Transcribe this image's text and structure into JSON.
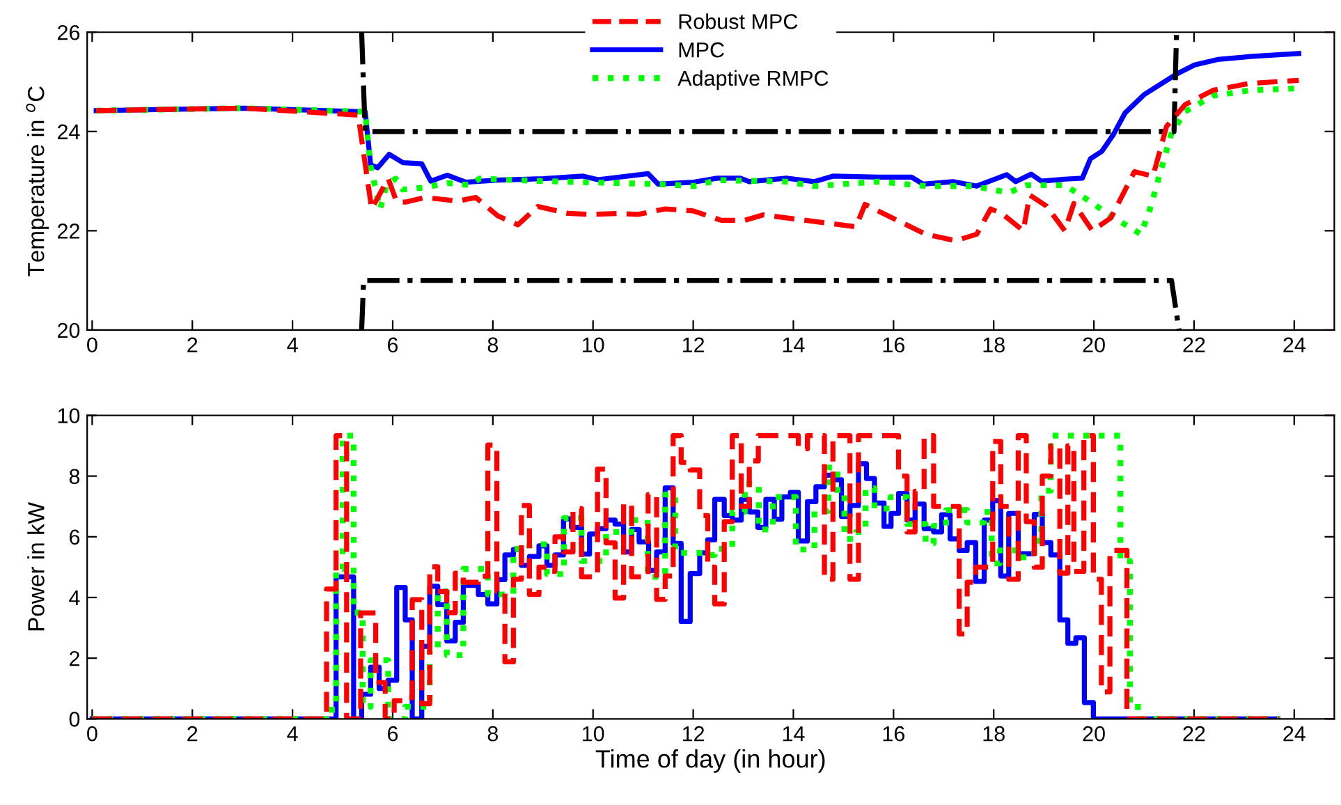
{
  "chart_data": [
    {
      "type": "line",
      "ylabel": "Temperature in $^{o}$C",
      "xlim": [
        -0.1,
        24.8
      ],
      "xticks": [
        0,
        2,
        4,
        6,
        8,
        10,
        12,
        14,
        16,
        18,
        20,
        22,
        24
      ],
      "ylim": [
        20,
        26
      ],
      "yticks": [
        20,
        22,
        24,
        26
      ],
      "legend": "top",
      "grid": false,
      "series": [
        {
          "name": "Robust MPC",
          "color": "#ff0000",
          "line_style": "dashed",
          "x": [
            0.08,
            3.04,
            5.31,
            5.58,
            5.91,
            6.08,
            6.27,
            6.64,
            7.3,
            7.66,
            8.1,
            8.5,
            8.9,
            9.5,
            9.97,
            10.5,
            10.9,
            11.44,
            12.0,
            12.56,
            13.03,
            13.4,
            15.25,
            15.43,
            16.64,
            17.24,
            17.66,
            17.94,
            18.16,
            18.59,
            18.72,
            19.05,
            19.42,
            19.6,
            19.97,
            20.34,
            20.81,
            21.18,
            21.45,
            21.82,
            22.38,
            23.12,
            24.09
          ],
          "values": [
            24.42,
            24.47,
            24.33,
            22.44,
            23.05,
            22.58,
            22.58,
            22.67,
            22.6,
            22.67,
            22.3,
            22.12,
            22.49,
            22.35,
            22.33,
            22.35,
            22.33,
            22.44,
            22.4,
            22.21,
            22.21,
            22.32,
            22.08,
            22.53,
            21.93,
            21.8,
            21.93,
            22.44,
            22.35,
            22.0,
            22.72,
            22.5,
            22.0,
            22.55,
            22.0,
            22.26,
            23.19,
            23.1,
            24.1,
            24.54,
            24.83,
            24.97,
            25.03
          ]
        },
        {
          "name": "MPC",
          "color": "#0000ff",
          "line_style": "solid",
          "x": [
            0.08,
            3.04,
            5.36,
            5.45,
            5.56,
            5.7,
            5.93,
            6.21,
            6.58,
            6.76,
            7.09,
            7.46,
            8.1,
            9.0,
            9.8,
            10.1,
            11.1,
            11.3,
            12.01,
            12.48,
            12.94,
            13.12,
            13.86,
            14.42,
            14.79,
            15.71,
            16.36,
            16.59,
            17.19,
            17.66,
            18.26,
            18.44,
            18.75,
            18.95,
            19.42,
            19.77,
            19.93,
            20.16,
            20.39,
            20.62,
            21.0,
            21.64,
            22.01,
            22.47,
            23.12,
            24.09
          ],
          "values": [
            24.42,
            24.47,
            24.4,
            24.4,
            23.33,
            23.27,
            23.54,
            23.37,
            23.35,
            23.0,
            23.12,
            22.98,
            23.02,
            23.05,
            23.1,
            23.03,
            23.15,
            22.94,
            22.98,
            23.06,
            23.06,
            22.99,
            23.06,
            22.99,
            23.1,
            23.08,
            23.08,
            22.94,
            22.99,
            22.9,
            23.13,
            22.99,
            23.14,
            23.0,
            23.04,
            23.06,
            23.45,
            23.6,
            23.94,
            24.37,
            24.74,
            25.15,
            25.34,
            25.45,
            25.51,
            25.57
          ]
        },
        {
          "name": "Adaptive RMPC",
          "color": "#00ff00",
          "line_style": "dotted",
          "x": [
            0.08,
            3.04,
            5.36,
            5.45,
            5.56,
            5.75,
            5.88,
            6.06,
            6.2,
            6.62,
            7.09,
            7.55,
            7.73,
            9.0,
            11.3,
            12.01,
            12.48,
            13.86,
            14.42,
            15.71,
            16.64,
            17.57,
            18.3,
            18.66,
            19.42,
            19.79,
            20.34,
            20.94,
            21.12,
            21.54,
            21.82,
            22.38,
            23.12,
            24.09
          ],
          "values": [
            24.42,
            24.47,
            24.4,
            24.4,
            23.29,
            22.44,
            22.93,
            23.05,
            22.83,
            22.87,
            22.96,
            22.92,
            23.05,
            23.0,
            22.94,
            22.9,
            23.02,
            22.99,
            22.9,
            22.99,
            22.9,
            22.9,
            22.77,
            22.92,
            22.92,
            22.68,
            22.3,
            21.93,
            22.44,
            23.94,
            24.4,
            24.72,
            24.83,
            24.87
          ]
        },
        {
          "color": "#000000",
          "line_style": "dashdot",
          "x": [
            5.38,
            5.45,
            21.6,
            21.65
          ],
          "values": [
            26,
            24,
            24,
            26
          ]
        },
        {
          "color": "#000000",
          "line_style": "dashdot",
          "x": [
            5.38,
            5.42,
            21.55,
            21.7
          ],
          "values": [
            20,
            21,
            21,
            20
          ]
        }
      ]
    },
    {
      "type": "step",
      "xlabel": "Time of day (in hour)",
      "ylabel": "Power in kW",
      "xlim": [
        -0.1,
        24.8
      ],
      "xticks": [
        0,
        2,
        4,
        6,
        8,
        10,
        12,
        14,
        16,
        18,
        20,
        22,
        24
      ],
      "ylim": [
        0,
        10
      ],
      "yticks": [
        0,
        2,
        4,
        6,
        8,
        10
      ],
      "grid": false,
      "series": [
        {
          "color": "#ff0000",
          "line_style": "dashed",
          "x": [
            0,
            4.68,
            4.87,
            5.08,
            5.36,
            5.66,
            5.85,
            6.03,
            6.2,
            6.39,
            6.58,
            6.74,
            6.9,
            7.08,
            7.25,
            7.41,
            7.71,
            7.9,
            8.08,
            8.24,
            8.41,
            8.57,
            8.73,
            8.92,
            9.08,
            9.24,
            9.41,
            9.6,
            9.77,
            10.09,
            10.26,
            10.44,
            10.61,
            10.77,
            11.1,
            11.27,
            11.44,
            11.6,
            11.76,
            11.94,
            12.13,
            12.29,
            12.43,
            12.62,
            12.78,
            12.96,
            13.12,
            13.3,
            14.1,
            14.28,
            14.62,
            14.79,
            15.13,
            15.3,
            16.1,
            16.27,
            16.43,
            16.61,
            16.8,
            17.31,
            17.47,
            17.64,
            17.98,
            18.14,
            18.3,
            18.49,
            18.65,
            18.81,
            18.97,
            19.14,
            19.32,
            19.48,
            19.6,
            19.8,
            19.99,
            20.15,
            20.32,
            20.66,
            23.7
          ],
          "values": [
            0,
            4.28,
            9.33,
            0,
            3.49,
            1.2,
            0,
            0.6,
            0.7,
            3.93,
            0.5,
            5.01,
            4.2,
            3.5,
            4.8,
            4.5,
            4.7,
            9.02,
            4.2,
            1.88,
            4.6,
            7.03,
            4.1,
            5.0,
            4.86,
            6.0,
            5.5,
            6.93,
            4.68,
            8.23,
            5.8,
            3.98,
            7.08,
            4.68,
            7.39,
            3.94,
            4.71,
            9.33,
            8.45,
            8.2,
            6.7,
            5.0,
            3.79,
            6.5,
            9.33,
            7.0,
            8.5,
            9.33,
            8.9,
            9.33,
            4.6,
            9.33,
            4.6,
            9.33,
            8.0,
            6.16,
            7.5,
            9.33,
            7.0,
            2.8,
            4.5,
            5.0,
            9.14,
            7.0,
            4.6,
            9.33,
            6.5,
            5.0,
            8.0,
            9.0,
            4.8,
            9.0,
            4.86,
            9.33,
            4.6,
            0.89,
            5.55,
            0,
            0
          ]
        },
        {
          "color": "#0000ff",
          "line_style": "solid",
          "x": [
            0,
            4.87,
            5.22,
            5.38,
            5.56,
            5.73,
            5.91,
            6.08,
            6.25,
            6.39,
            6.58,
            6.74,
            6.9,
            7.08,
            7.25,
            7.41,
            7.71,
            7.9,
            8.08,
            8.24,
            8.41,
            8.57,
            8.73,
            8.92,
            9.08,
            9.24,
            9.41,
            9.57,
            9.77,
            9.93,
            10.09,
            10.26,
            10.44,
            10.61,
            10.77,
            10.92,
            11.11,
            11.27,
            11.44,
            11.6,
            11.76,
            11.94,
            12.13,
            12.29,
            12.43,
            12.62,
            12.78,
            12.96,
            13.12,
            13.29,
            13.45,
            13.62,
            13.77,
            13.94,
            14.1,
            14.28,
            14.45,
            14.62,
            14.79,
            14.96,
            15.13,
            15.3,
            15.46,
            15.62,
            15.81,
            15.95,
            16.1,
            16.27,
            16.43,
            16.61,
            16.8,
            16.96,
            17.13,
            17.31,
            17.47,
            17.64,
            17.81,
            17.98,
            18.14,
            18.3,
            18.49,
            18.81,
            18.97,
            19.14,
            19.32,
            19.48,
            19.64,
            19.81,
            19.99,
            23.67
          ],
          "values": [
            0,
            4.68,
            0,
            0.81,
            1.7,
            1.0,
            1.27,
            4.33,
            3.26,
            0,
            2.39,
            4.37,
            3.76,
            2.57,
            3.18,
            4.4,
            4.1,
            3.79,
            4.59,
            5.4,
            5.58,
            5.06,
            5.35,
            5.7,
            5.06,
            5.4,
            6.59,
            6.31,
            5.43,
            6.09,
            6.27,
            6.55,
            6.42,
            5.5,
            6.24,
            5.83,
            4.89,
            5.5,
            7.61,
            5.78,
            3.21,
            4.79,
            5.47,
            5.9,
            7.23,
            6.7,
            6.55,
            7.23,
            6.82,
            6.31,
            7.23,
            6.58,
            7.31,
            7.46,
            5.86,
            7.16,
            7.65,
            8.03,
            7.88,
            6.67,
            7.03,
            8.41,
            7.92,
            7.11,
            6.34,
            6.77,
            7.43,
            6.55,
            7.08,
            6.27,
            6.16,
            6.73,
            5.93,
            5.55,
            5.81,
            4.53,
            6.55,
            7.19,
            4.71,
            6.77,
            5.44,
            6.74,
            5.81,
            5.4,
            3.26,
            2.49,
            2.67,
            0.54,
            0,
            0
          ]
        },
        {
          "color": "#00ff00",
          "line_style": "dotted",
          "x": [
            0,
            4.68,
            4.87,
            5.0,
            5.22,
            5.4,
            5.56,
            5.91,
            6.25,
            6.74,
            6.9,
            7.08,
            7.41,
            7.9,
            8.41,
            8.73,
            9.08,
            9.42,
            9.77,
            10.26,
            10.77,
            11.09,
            11.44,
            11.64,
            12.25,
            12.43,
            12.78,
            13.03,
            13.31,
            13.59,
            14.05,
            14.42,
            14.7,
            14.88,
            15.02,
            15.25,
            15.44,
            15.62,
            15.94,
            16.27,
            16.64,
            16.8,
            17.05,
            17.47,
            17.8,
            17.96,
            18.12,
            18.49,
            18.81,
            18.95,
            19.14,
            20.53,
            20.72,
            20.88,
            23.71
          ],
          "values": [
            0,
            0.3,
            4.94,
            9.33,
            3.5,
            0.4,
            1.93,
            0,
            0.4,
            2.26,
            4.2,
            2.1,
            4.94,
            4.1,
            5.6,
            5.75,
            4.77,
            6.62,
            5.2,
            6.16,
            6.55,
            4.68,
            7.39,
            5.47,
            5.4,
            5.6,
            6.82,
            7.74,
            6.24,
            7.31,
            5.58,
            6.85,
            8.28,
            7.39,
            5.93,
            6.16,
            7.6,
            6.93,
            7.31,
            6.42,
            5.78,
            6.36,
            6.88,
            6.47,
            6.82,
            5.12,
            5.55,
            5.32,
            5.87,
            7.52,
            9.33,
            5.2,
            0.5,
            0,
            0
          ]
        }
      ]
    }
  ]
}
